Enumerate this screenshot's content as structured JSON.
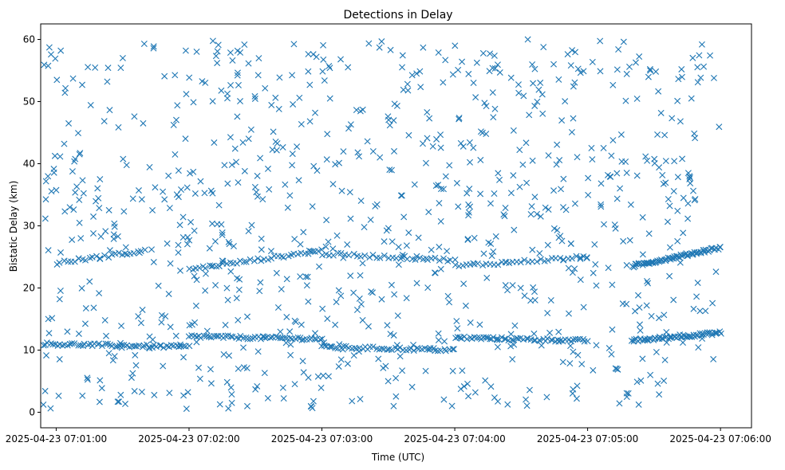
{
  "chart_data": {
    "type": "scatter",
    "title": "Detections in Delay",
    "xlabel": "Time (UTC)",
    "ylabel": "Bistatic Delay (km)",
    "marker": "x",
    "color": "#1f77b4",
    "grid": false,
    "xlim": [
      "2025-04-23 07:00:53",
      "2025-04-23 07:06:14"
    ],
    "ylim": [
      -2.5,
      62.5
    ],
    "x_ticks": [
      "2025-04-23 07:01:00",
      "2025-04-23 07:02:00",
      "2025-04-23 07:03:00",
      "2025-04-23 07:04:00",
      "2025-04-23 07:05:00",
      "2025-04-23 07:06:00"
    ],
    "y_ticks": [
      0,
      10,
      20,
      30,
      40,
      50,
      60
    ],
    "series": [
      {
        "random_points": {
          "t_start": "2025-04-23 07:00:54",
          "t_end": "2025-04-23 07:06:00",
          "count": 900,
          "delay_min": 0.5,
          "delay_max": 60
        },
        "tracks": [
          {
            "t_start": "2025-04-23 07:00:54",
            "t_end": "2025-04-23 07:02:00",
            "delay_start": 11.0,
            "delay_end": 10.5,
            "count": 60
          },
          {
            "t_start": "2025-04-23 07:02:00",
            "t_end": "2025-04-23 07:03:00",
            "delay_start": 12.2,
            "delay_end": 11.8,
            "count": 55
          },
          {
            "t_start": "2025-04-23 07:03:00",
            "t_end": "2025-04-23 07:04:00",
            "delay_start": 10.5,
            "delay_end": 10.0,
            "count": 50
          },
          {
            "t_start": "2025-04-23 07:04:00",
            "t_end": "2025-04-23 07:05:00",
            "delay_start": 12.0,
            "delay_end": 11.5,
            "count": 55
          },
          {
            "t_start": "2025-04-23 07:05:20",
            "t_end": "2025-04-23 07:06:00",
            "delay_start": 11.5,
            "delay_end": 12.8,
            "count": 60
          },
          {
            "t_start": "2025-04-23 07:02:00",
            "t_end": "2025-04-23 07:03:00",
            "delay_start": 23.0,
            "delay_end": 26.0,
            "count": 40
          },
          {
            "t_start": "2025-04-23 07:03:00",
            "t_end": "2025-04-23 07:04:00",
            "delay_start": 25.5,
            "delay_end": 24.5,
            "count": 35
          },
          {
            "t_start": "2025-04-23 07:04:00",
            "t_end": "2025-04-23 07:05:00",
            "delay_start": 23.5,
            "delay_end": 25.0,
            "count": 35
          },
          {
            "t_start": "2025-04-23 07:05:20",
            "t_end": "2025-04-23 07:06:00",
            "delay_start": 23.5,
            "delay_end": 26.5,
            "count": 70
          },
          {
            "t_start": "2025-04-23 07:01:00",
            "t_end": "2025-04-23 07:01:40",
            "delay_start": 24.0,
            "delay_end": 26.0,
            "count": 25
          }
        ]
      }
    ]
  }
}
